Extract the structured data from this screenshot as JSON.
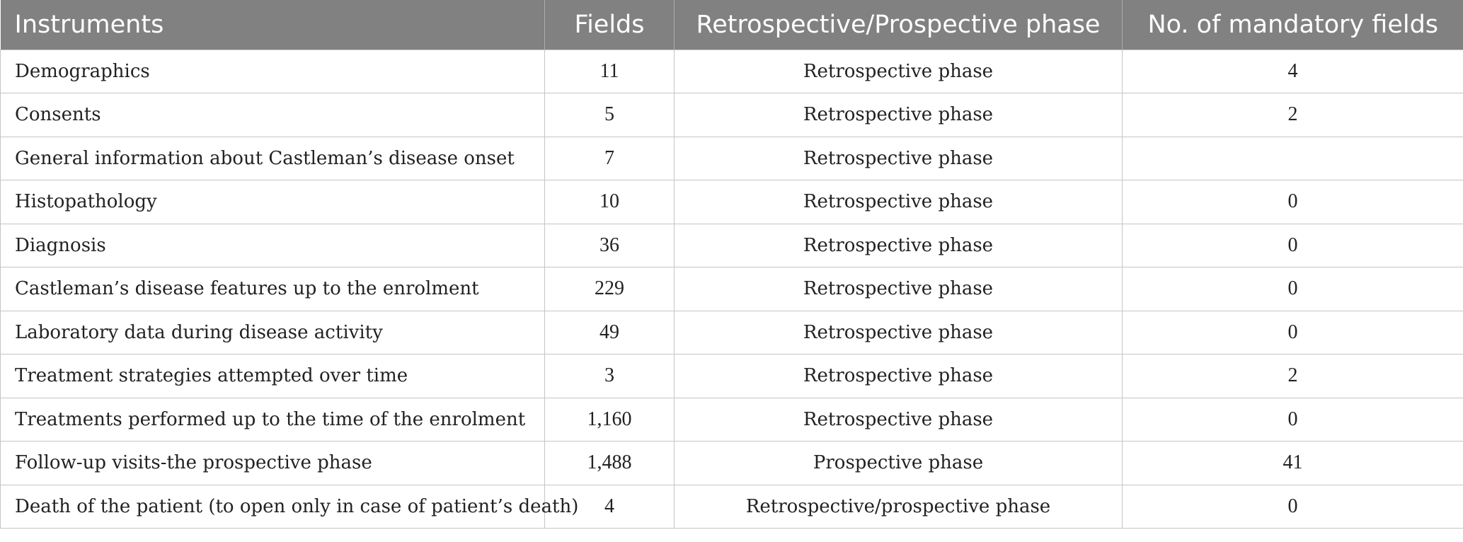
{
  "table": {
    "headers": [
      "Instruments",
      "Fields",
      "Retrospective/Prospective phase",
      "No. of mandatory fields"
    ],
    "rows": [
      {
        "instrument": "Demographics",
        "fields": "11",
        "phase": "Retrospective phase",
        "mandatory": "4"
      },
      {
        "instrument": "Consents",
        "fields": "5",
        "phase": "Retrospective phase",
        "mandatory": "2"
      },
      {
        "instrument": "General information about Castleman’s disease onset",
        "fields": "7",
        "phase": "Retrospective phase",
        "mandatory": ""
      },
      {
        "instrument": "Histopathology",
        "fields": "10",
        "phase": "Retrospective phase",
        "mandatory": "0"
      },
      {
        "instrument": "Diagnosis",
        "fields": "36",
        "phase": "Retrospective phase",
        "mandatory": "0"
      },
      {
        "instrument": "Castleman’s disease features up to the enrolment",
        "fields": "229",
        "phase": "Retrospective phase",
        "mandatory": "0"
      },
      {
        "instrument": "Laboratory data during disease activity",
        "fields": "49",
        "phase": "Retrospective phase",
        "mandatory": "0"
      },
      {
        "instrument": "Treatment strategies attempted over time",
        "fields": "3",
        "phase": "Retrospective phase",
        "mandatory": "2"
      },
      {
        "instrument": "Treatments performed up to the time of the enrolment",
        "fields": "1,160",
        "phase": "Retrospective phase",
        "mandatory": "0"
      },
      {
        "instrument": "Follow-up visits-the prospective phase",
        "fields": "1,488",
        "phase": "Prospective phase",
        "mandatory": "41"
      },
      {
        "instrument": "Death of the patient (to open only in case of patient’s death)",
        "fields": "4",
        "phase": "Retrospective/prospective phase",
        "mandatory": "0"
      }
    ]
  },
  "colors": {
    "header_bg": "#808180",
    "header_text": "#ffffff",
    "border": "#c5c5c5"
  }
}
